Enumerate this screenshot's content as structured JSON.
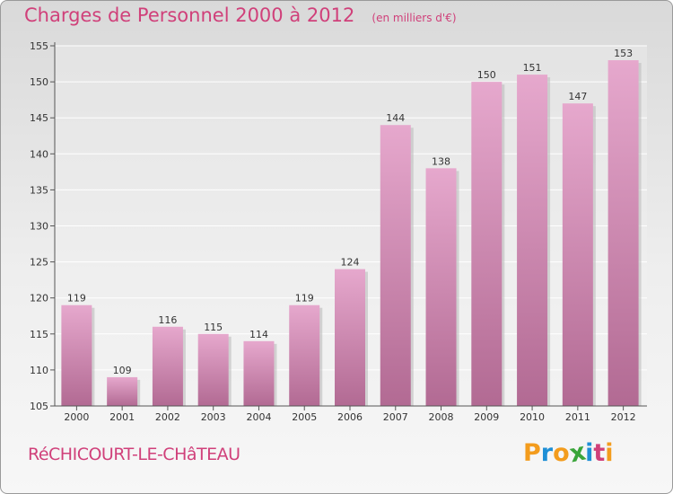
{
  "title": "Charges de Personnel 2000 à 2012",
  "subtitle": "(en milliers d'€)",
  "commune": "RéCHICOURT-LE-CHâTEAU",
  "logo": {
    "text": "Proxiti",
    "letters": [
      {
        "char": "P",
        "color": "#f39c1d"
      },
      {
        "char": "r",
        "color": "#1e8fd6"
      },
      {
        "char": "o",
        "color": "#f39c1d"
      },
      {
        "char": "x",
        "color": "#3aa53a"
      },
      {
        "char": "i",
        "color": "#1e8fd6"
      },
      {
        "char": "t",
        "color": "#d0407a"
      },
      {
        "char": "i",
        "color": "#f39c1d"
      }
    ]
  },
  "colors": {
    "bar_top": "#e6a8cd",
    "bar_bottom": "#b26a93",
    "title": "#d0407a"
  },
  "chart_data": {
    "type": "bar",
    "categories": [
      "2000",
      "2001",
      "2002",
      "2003",
      "2004",
      "2005",
      "2006",
      "2007",
      "2008",
      "2009",
      "2010",
      "2011",
      "2012"
    ],
    "values": [
      119,
      109,
      116,
      115,
      114,
      119,
      124,
      144,
      138,
      150,
      151,
      147,
      153
    ],
    "ylim": [
      105,
      155
    ],
    "yticks": [
      105,
      110,
      115,
      120,
      125,
      130,
      135,
      140,
      145,
      150,
      155
    ],
    "grid": true
  }
}
